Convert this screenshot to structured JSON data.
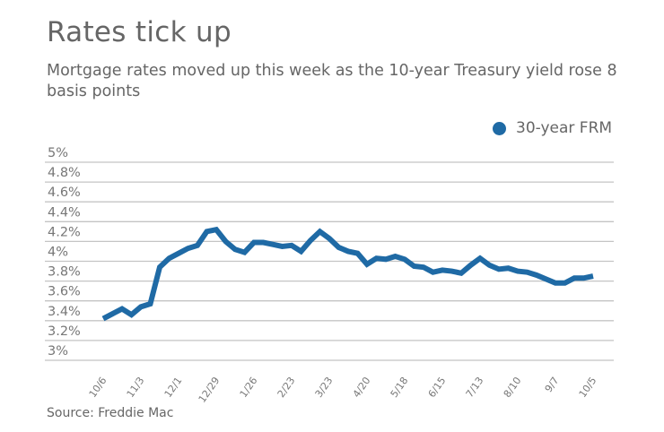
{
  "chart_data": {
    "type": "line",
    "title": "Rates tick up",
    "subtitle": "Mortgage rates moved up this week as the 10-year Treasury yield rose 8 basis points",
    "source": "Source: Freddie Mac",
    "legend_position": "top-right",
    "grid": true,
    "ylim": [
      3,
      5
    ],
    "y_ticks": [
      "5%",
      "4.8%",
      "4.6%",
      "4.4%",
      "4.2%",
      "4%",
      "3.8%",
      "3.6%",
      "3.4%",
      "3.2%",
      "3%"
    ],
    "y_tick_values": [
      5,
      4.8,
      4.6,
      4.4,
      4.2,
      4.0,
      3.8,
      3.6,
      3.4,
      3.2,
      3.0
    ],
    "x_tick_labels": [
      "10/6",
      "11/3",
      "12/1",
      "12/29",
      "1/26",
      "2/23",
      "3/23",
      "4/20",
      "5/18",
      "6/15",
      "7/13",
      "8/10",
      "9/7",
      "10/5"
    ],
    "x": [
      "10/6",
      "10/13",
      "10/20",
      "10/27",
      "11/3",
      "11/10",
      "11/17",
      "11/24",
      "12/1",
      "12/8",
      "12/15",
      "12/22",
      "12/29",
      "1/5",
      "1/12",
      "1/19",
      "1/26",
      "2/2",
      "2/9",
      "2/16",
      "2/23",
      "3/2",
      "3/9",
      "3/16",
      "3/23",
      "3/30",
      "4/6",
      "4/13",
      "4/20",
      "4/27",
      "5/4",
      "5/11",
      "5/18",
      "5/25",
      "6/1",
      "6/8",
      "6/15",
      "6/22",
      "6/29",
      "7/6",
      "7/13",
      "7/20",
      "7/27",
      "8/3",
      "8/10",
      "8/17",
      "8/24",
      "8/31",
      "9/7",
      "9/14",
      "9/21",
      "9/28",
      "10/5"
    ],
    "series": [
      {
        "name": "30-year FRM",
        "color": "#1f6aa5",
        "values": [
          3.42,
          3.47,
          3.52,
          3.46,
          3.54,
          3.57,
          3.94,
          4.03,
          4.08,
          4.13,
          4.16,
          4.3,
          4.32,
          4.2,
          4.12,
          4.09,
          4.19,
          4.19,
          4.17,
          4.15,
          4.16,
          4.1,
          4.21,
          4.3,
          4.23,
          4.14,
          4.1,
          4.08,
          3.97,
          4.03,
          4.02,
          4.05,
          4.02,
          3.95,
          3.94,
          3.89,
          3.91,
          3.9,
          3.88,
          3.96,
          4.03,
          3.96,
          3.92,
          3.93,
          3.9,
          3.89,
          3.86,
          3.82,
          3.78,
          3.78,
          3.83,
          3.83,
          3.85
        ]
      }
    ]
  }
}
